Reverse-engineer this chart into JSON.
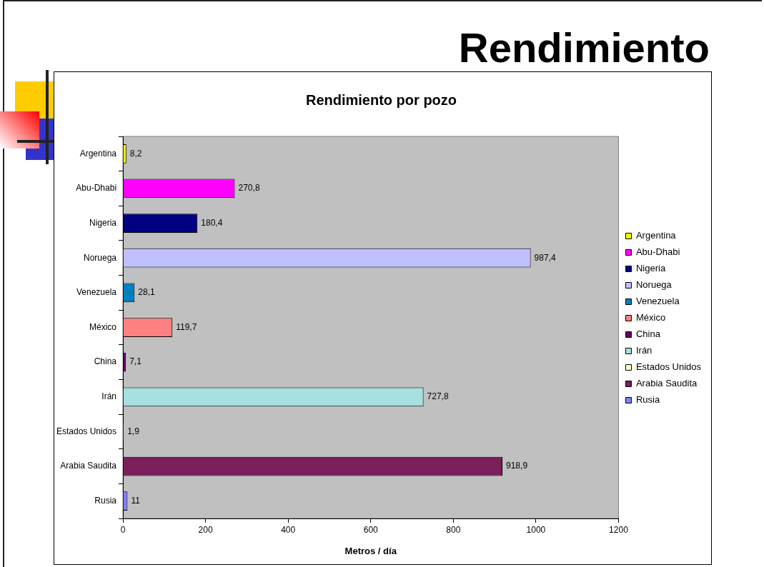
{
  "chart_data": {
    "type": "bar",
    "orientation": "horizontal",
    "title": "Rendimiento",
    "subtitle": "Rendimiento por pozo",
    "xlabel": "Metros / día",
    "categories": [
      "Argentina",
      "Abu-Dhabi",
      "Nigeria",
      "Noruega",
      "Venezuela",
      "México",
      "China",
      "Irán",
      "Estados Unidos",
      "Arabia Saudita",
      "Rusia"
    ],
    "series": [
      {
        "name": "Argentina",
        "color": "#ffff00",
        "values": [
          8.2,
          null,
          null,
          null,
          null,
          null,
          null,
          null,
          null,
          null,
          null
        ],
        "value_labels": [
          "8,2",
          null,
          null,
          null,
          null,
          null,
          null,
          null,
          null,
          null,
          null
        ]
      },
      {
        "name": "Abu-Dhabi",
        "color": "#ff00ff",
        "values": [
          null,
          270.8,
          null,
          null,
          null,
          null,
          null,
          null,
          null,
          null,
          null
        ],
        "value_labels": [
          null,
          "270,8",
          null,
          null,
          null,
          null,
          null,
          null,
          null,
          null,
          null
        ]
      },
      {
        "name": "Nigeria",
        "color": "#000080",
        "values": [
          null,
          null,
          180.4,
          null,
          null,
          null,
          null,
          null,
          null,
          null,
          null
        ],
        "value_labels": [
          null,
          null,
          "180,4",
          null,
          null,
          null,
          null,
          null,
          null,
          null,
          null
        ]
      },
      {
        "name": "Noruega",
        "color": "#c0c0ff",
        "values": [
          null,
          null,
          null,
          987.4,
          null,
          null,
          null,
          null,
          null,
          null,
          null
        ],
        "value_labels": [
          null,
          null,
          null,
          "987,4",
          null,
          null,
          null,
          null,
          null,
          null,
          null
        ]
      },
      {
        "name": "Venezuela",
        "color": "#0080c0",
        "values": [
          null,
          null,
          null,
          null,
          28.1,
          null,
          null,
          null,
          null,
          null,
          null
        ],
        "value_labels": [
          null,
          null,
          null,
          null,
          "28,1",
          null,
          null,
          null,
          null,
          null,
          null
        ]
      },
      {
        "name": "México",
        "color": "#ff8080",
        "values": [
          null,
          null,
          null,
          null,
          null,
          119.7,
          null,
          null,
          null,
          null,
          null
        ],
        "value_labels": [
          null,
          null,
          null,
          null,
          null,
          "119,7",
          null,
          null,
          null,
          null,
          null
        ]
      },
      {
        "name": "China",
        "color": "#660066",
        "values": [
          null,
          null,
          null,
          null,
          null,
          null,
          7.1,
          null,
          null,
          null,
          null
        ],
        "value_labels": [
          null,
          null,
          null,
          null,
          null,
          null,
          "7,1",
          null,
          null,
          null,
          null
        ]
      },
      {
        "name": "Irán",
        "color": "#a6e0e0",
        "values": [
          null,
          null,
          null,
          null,
          null,
          null,
          null,
          727.8,
          null,
          null,
          null
        ],
        "value_labels": [
          null,
          null,
          null,
          null,
          null,
          null,
          null,
          "727,8",
          null,
          null,
          null
        ]
      },
      {
        "name": "Estados Unidos",
        "color": "#ffffc0",
        "values": [
          null,
          null,
          null,
          null,
          null,
          null,
          null,
          null,
          1.9,
          null,
          null
        ],
        "value_labels": [
          null,
          null,
          null,
          null,
          null,
          null,
          null,
          null,
          "1,9",
          null,
          null
        ]
      },
      {
        "name": "Arabia Saudita",
        "color": "#7b1f5a",
        "values": [
          null,
          null,
          null,
          null,
          null,
          null,
          null,
          null,
          null,
          918.9,
          null
        ],
        "value_labels": [
          null,
          null,
          null,
          null,
          null,
          null,
          null,
          null,
          null,
          "918,9",
          null
        ]
      },
      {
        "name": "Rusia",
        "color": "#8080ff",
        "values": [
          null,
          null,
          null,
          null,
          null,
          null,
          null,
          null,
          null,
          null,
          11
        ],
        "value_labels": [
          null,
          null,
          null,
          null,
          null,
          null,
          null,
          null,
          null,
          null,
          "11"
        ]
      }
    ],
    "xlim": [
      0,
      1200
    ],
    "xticks": [
      0,
      200,
      400,
      600,
      800,
      1000,
      1200
    ],
    "grid": false,
    "legend": "right"
  }
}
